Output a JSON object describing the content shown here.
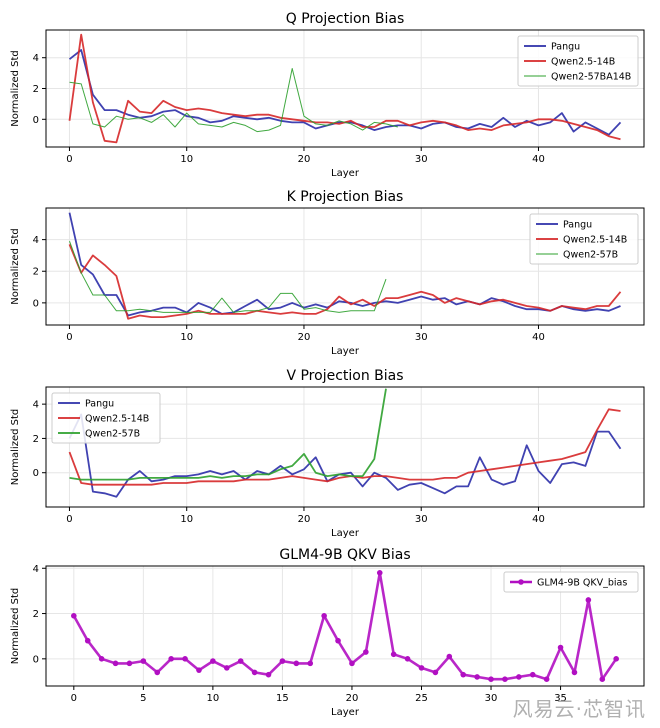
{
  "watermark": "风易云·芯智讯",
  "colors": {
    "pangu": "#2b2ea8",
    "qwen14b": "#d62728",
    "qwen57": "#2ca02c",
    "glm": "#b10fc2",
    "grid": "#e6e6e6"
  },
  "chart_data": [
    {
      "type": "line",
      "title": "Q Projection Bias",
      "xlabel": "Layer",
      "ylabel": "Normalized Std",
      "xlim": [
        -2,
        49
      ],
      "ylim": [
        -1.8,
        5.8
      ],
      "xticks": [
        0,
        10,
        20,
        30,
        40
      ],
      "yticks": [
        0,
        2,
        4
      ],
      "grid": true,
      "legend": "top-right",
      "series": [
        {
          "name": "Pangu",
          "color": "#2b2ea8",
          "width": 1.8,
          "x": [
            0,
            1,
            2,
            3,
            4,
            5,
            6,
            7,
            8,
            9,
            10,
            11,
            12,
            13,
            14,
            15,
            16,
            17,
            18,
            19,
            20,
            21,
            22,
            23,
            24,
            25,
            26,
            27,
            28,
            29,
            30,
            31,
            32,
            33,
            34,
            35,
            36,
            37,
            38,
            39,
            40,
            41,
            42,
            43,
            44,
            45,
            46,
            47
          ],
          "values": [
            3.9,
            4.5,
            1.6,
            0.6,
            0.6,
            0.3,
            0.1,
            0.2,
            0.5,
            0.6,
            0.2,
            0.1,
            -0.2,
            -0.1,
            0.2,
            0.1,
            0.0,
            0.1,
            -0.1,
            -0.2,
            -0.2,
            -0.6,
            -0.4,
            -0.2,
            -0.2,
            -0.4,
            -0.7,
            -0.5,
            -0.4,
            -0.4,
            -0.6,
            -0.3,
            -0.2,
            -0.5,
            -0.6,
            -0.3,
            -0.5,
            0.1,
            -0.5,
            -0.1,
            -0.4,
            -0.2,
            0.4,
            -0.8,
            -0.2,
            -0.6,
            -1.0,
            -0.2
          ]
        },
        {
          "name": "Qwen2.5-14B",
          "color": "#d62728",
          "width": 1.8,
          "x": [
            0,
            1,
            2,
            3,
            4,
            5,
            6,
            7,
            8,
            9,
            10,
            11,
            12,
            13,
            14,
            15,
            16,
            17,
            18,
            19,
            20,
            21,
            22,
            23,
            24,
            25,
            26,
            27,
            28,
            29,
            30,
            31,
            32,
            33,
            34,
            35,
            36,
            37,
            38,
            39,
            40,
            41,
            42,
            43,
            44,
            45,
            46,
            47
          ],
          "values": [
            -0.1,
            5.5,
            1.1,
            -1.4,
            -1.5,
            1.2,
            0.5,
            0.4,
            1.2,
            0.8,
            0.6,
            0.7,
            0.6,
            0.4,
            0.3,
            0.2,
            0.3,
            0.3,
            0.1,
            0.0,
            -0.1,
            -0.2,
            -0.2,
            -0.3,
            -0.1,
            -0.5,
            -0.5,
            -0.1,
            -0.1,
            -0.4,
            -0.2,
            -0.1,
            -0.2,
            -0.4,
            -0.7,
            -0.6,
            -0.7,
            -0.4,
            -0.3,
            -0.2,
            0.0,
            0.0,
            -0.1,
            -0.3,
            -0.5,
            -0.7,
            -1.1,
            -1.3
          ]
        },
        {
          "name": "Qwen2-57BA14B",
          "color": "#2ca02c",
          "width": 1.0,
          "x": [
            0,
            1,
            2,
            3,
            4,
            5,
            6,
            7,
            8,
            9,
            10,
            11,
            12,
            13,
            14,
            15,
            16,
            17,
            18,
            19,
            20,
            21,
            22,
            23,
            24,
            25,
            26,
            27,
            28
          ],
          "values": [
            2.4,
            2.3,
            -0.3,
            -0.5,
            0.2,
            0.0,
            0.1,
            -0.2,
            0.3,
            -0.5,
            0.4,
            -0.3,
            -0.4,
            -0.5,
            -0.2,
            -0.4,
            -0.8,
            -0.7,
            -0.4,
            3.3,
            0.2,
            -0.3,
            -0.4,
            -0.1,
            -0.3,
            -0.7,
            -0.2,
            -0.3,
            -0.5
          ]
        }
      ]
    },
    {
      "type": "line",
      "title": "K Projection Bias",
      "xlabel": "Layer",
      "ylabel": "Normalized Std",
      "xlim": [
        -2,
        49
      ],
      "ylim": [
        -1.4,
        6.0
      ],
      "xticks": [
        0,
        10,
        20,
        30,
        40
      ],
      "yticks": [
        0,
        2,
        4
      ],
      "grid": true,
      "legend": "top-right",
      "series": [
        {
          "name": "Pangu",
          "color": "#2b2ea8",
          "width": 1.8,
          "x": [
            0,
            1,
            2,
            3,
            4,
            5,
            6,
            7,
            8,
            9,
            10,
            11,
            12,
            13,
            14,
            15,
            16,
            17,
            18,
            19,
            20,
            21,
            22,
            23,
            24,
            25,
            26,
            27,
            28,
            29,
            30,
            31,
            32,
            33,
            34,
            35,
            36,
            37,
            38,
            39,
            40,
            41,
            42,
            43,
            44,
            45,
            46,
            47
          ],
          "values": [
            5.7,
            2.4,
            1.8,
            0.5,
            0.5,
            -0.8,
            -0.6,
            -0.5,
            -0.3,
            -0.3,
            -0.6,
            0.0,
            -0.3,
            -0.7,
            -0.6,
            -0.2,
            0.2,
            -0.4,
            -0.3,
            0.0,
            -0.3,
            -0.1,
            -0.3,
            0.1,
            0.0,
            -0.2,
            0.0,
            0.1,
            0.0,
            0.2,
            0.4,
            0.2,
            0.3,
            -0.1,
            0.1,
            -0.1,
            0.3,
            0.1,
            -0.2,
            -0.4,
            -0.4,
            -0.5,
            -0.2,
            -0.4,
            -0.5,
            -0.4,
            -0.5,
            -0.2
          ]
        },
        {
          "name": "Qwen2.5-14B",
          "color": "#d62728",
          "width": 1.8,
          "x": [
            0,
            1,
            2,
            3,
            4,
            5,
            6,
            7,
            8,
            9,
            10,
            11,
            12,
            13,
            14,
            15,
            16,
            17,
            18,
            19,
            20,
            21,
            22,
            23,
            24,
            25,
            26,
            27,
            28,
            29,
            30,
            31,
            32,
            33,
            34,
            35,
            36,
            37,
            38,
            39,
            40,
            41,
            42,
            43,
            44,
            45,
            46,
            47
          ],
          "values": [
            3.7,
            1.9,
            3.0,
            2.4,
            1.7,
            -1.0,
            -0.8,
            -0.9,
            -0.9,
            -0.8,
            -0.7,
            -0.5,
            -0.7,
            -0.7,
            -0.7,
            -0.7,
            -0.5,
            -0.6,
            -0.7,
            -0.6,
            -0.7,
            -0.7,
            -0.4,
            0.4,
            -0.1,
            0.2,
            -0.2,
            0.3,
            0.3,
            0.5,
            0.7,
            0.5,
            0.0,
            0.3,
            0.1,
            -0.1,
            0.1,
            0.2,
            0.0,
            -0.2,
            -0.3,
            -0.5,
            -0.2,
            -0.3,
            -0.4,
            -0.2,
            -0.2,
            0.7
          ]
        },
        {
          "name": "Qwen2-57B",
          "color": "#2ca02c",
          "width": 1.0,
          "x": [
            0,
            1,
            2,
            3,
            4,
            5,
            6,
            7,
            8,
            9,
            10,
            11,
            12,
            13,
            14,
            15,
            16,
            17,
            18,
            19,
            20,
            21,
            22,
            23,
            24,
            25,
            26,
            27
          ],
          "values": [
            3.9,
            1.9,
            0.5,
            0.5,
            -0.5,
            -0.5,
            -0.4,
            -0.5,
            -0.6,
            -0.6,
            -0.6,
            -0.6,
            -0.6,
            0.3,
            -0.6,
            -0.5,
            -0.5,
            -0.3,
            0.6,
            0.6,
            -0.4,
            -0.3,
            -0.5,
            -0.6,
            -0.5,
            -0.5,
            -0.5,
            1.5
          ]
        }
      ]
    },
    {
      "type": "line",
      "title": "V Projection Bias",
      "xlabel": "Layer",
      "ylabel": "Normalized Std",
      "xlim": [
        -2,
        49
      ],
      "ylim": [
        -2.0,
        5.0
      ],
      "xticks": [
        0,
        10,
        20,
        30,
        40
      ],
      "yticks": [
        0,
        2,
        4
      ],
      "grid": true,
      "legend": "top-left",
      "series": [
        {
          "name": "Pangu",
          "color": "#2b2ea8",
          "width": 1.8,
          "x": [
            0,
            1,
            2,
            3,
            4,
            5,
            6,
            7,
            8,
            9,
            10,
            11,
            12,
            13,
            14,
            15,
            16,
            17,
            18,
            19,
            20,
            21,
            22,
            23,
            24,
            25,
            26,
            27,
            28,
            29,
            30,
            31,
            32,
            33,
            34,
            35,
            36,
            37,
            38,
            39,
            40,
            41,
            42,
            43,
            44,
            45,
            46,
            47
          ],
          "values": [
            2.0,
            3.4,
            -1.1,
            -1.2,
            -1.4,
            -0.4,
            0.1,
            -0.5,
            -0.4,
            -0.2,
            -0.2,
            -0.1,
            0.1,
            -0.1,
            0.1,
            -0.4,
            0.1,
            -0.1,
            0.4,
            -0.1,
            0.2,
            0.9,
            -0.5,
            -0.1,
            0.0,
            -0.8,
            0.0,
            -0.3,
            -1.0,
            -0.7,
            -0.6,
            -0.9,
            -1.2,
            -0.8,
            -0.8,
            0.9,
            -0.4,
            -0.7,
            -0.5,
            1.6,
            0.1,
            -0.6,
            0.5,
            0.6,
            0.4,
            2.4,
            2.4,
            1.4
          ]
        },
        {
          "name": "Qwen2.5-14B",
          "color": "#d62728",
          "width": 1.8,
          "x": [
            0,
            1,
            2,
            3,
            4,
            5,
            6,
            7,
            8,
            9,
            10,
            11,
            12,
            13,
            14,
            15,
            16,
            17,
            18,
            19,
            20,
            21,
            22,
            23,
            24,
            25,
            26,
            27,
            28,
            29,
            30,
            31,
            32,
            33,
            34,
            35,
            36,
            37,
            38,
            39,
            40,
            41,
            42,
            43,
            44,
            45,
            46,
            47
          ],
          "values": [
            1.2,
            -0.6,
            -0.7,
            -0.7,
            -0.7,
            -0.7,
            -0.7,
            -0.7,
            -0.6,
            -0.6,
            -0.6,
            -0.5,
            -0.5,
            -0.5,
            -0.5,
            -0.4,
            -0.4,
            -0.4,
            -0.3,
            -0.2,
            -0.3,
            -0.4,
            -0.5,
            -0.3,
            -0.2,
            -0.3,
            -0.2,
            -0.2,
            -0.3,
            -0.4,
            -0.4,
            -0.4,
            -0.3,
            -0.3,
            0.0,
            0.1,
            0.2,
            0.3,
            0.4,
            0.5,
            0.6,
            0.7,
            0.8,
            1.0,
            1.2,
            2.5,
            3.7,
            3.6
          ]
        },
        {
          "name": "Qwen2-57B",
          "color": "#2ca02c",
          "width": 1.8,
          "x": [
            0,
            1,
            2,
            3,
            4,
            5,
            6,
            7,
            8,
            9,
            10,
            11,
            12,
            13,
            14,
            15,
            16,
            17,
            18,
            19,
            20,
            21,
            22,
            23,
            24,
            25,
            26,
            27
          ],
          "values": [
            -0.3,
            -0.4,
            -0.4,
            -0.4,
            -0.4,
            -0.4,
            -0.3,
            -0.3,
            -0.3,
            -0.3,
            -0.3,
            -0.3,
            -0.2,
            -0.3,
            -0.2,
            -0.2,
            -0.1,
            -0.1,
            0.2,
            0.4,
            1.1,
            0.0,
            -0.2,
            -0.1,
            -0.2,
            -0.2,
            0.8,
            4.9
          ]
        }
      ]
    },
    {
      "type": "line",
      "title": "GLM4-9B QKV Bias",
      "xlabel": "Layer",
      "ylabel": "Normalized Std",
      "xlim": [
        -2,
        41
      ],
      "ylim": [
        -1.2,
        4.1
      ],
      "xticks": [
        0,
        5,
        10,
        15,
        20,
        25,
        30,
        35
      ],
      "yticks": [
        0,
        2,
        4
      ],
      "grid": true,
      "legend": "top-right",
      "series": [
        {
          "name": "GLM4-9B QKV_bias",
          "color": "#b10fc2",
          "width": 2.6,
          "markers": true,
          "x": [
            0,
            1,
            2,
            3,
            4,
            5,
            6,
            7,
            8,
            9,
            10,
            11,
            12,
            13,
            14,
            15,
            16,
            17,
            18,
            19,
            20,
            21,
            22,
            23,
            24,
            25,
            26,
            27,
            28,
            29,
            30,
            31,
            32,
            33,
            34,
            35,
            36,
            37,
            38,
            39
          ],
          "values": [
            1.9,
            0.8,
            0.0,
            -0.2,
            -0.2,
            -0.1,
            -0.6,
            0.0,
            0.0,
            -0.5,
            -0.1,
            -0.4,
            -0.1,
            -0.6,
            -0.7,
            -0.1,
            -0.2,
            -0.2,
            1.9,
            0.8,
            -0.2,
            0.3,
            3.8,
            0.2,
            0.0,
            -0.4,
            -0.6,
            0.1,
            -0.7,
            -0.8,
            -0.9,
            -0.9,
            -0.8,
            -0.7,
            -0.9,
            0.5,
            -0.6,
            2.6,
            -0.9,
            0.0
          ]
        }
      ]
    }
  ]
}
